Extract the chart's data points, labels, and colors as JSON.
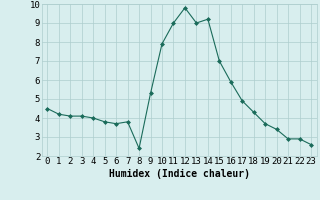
{
  "x": [
    0,
    1,
    2,
    3,
    4,
    5,
    6,
    7,
    8,
    9,
    10,
    11,
    12,
    13,
    14,
    15,
    16,
    17,
    18,
    19,
    20,
    21,
    22,
    23
  ],
  "y": [
    4.5,
    4.2,
    4.1,
    4.1,
    4.0,
    3.8,
    3.7,
    3.8,
    2.4,
    5.3,
    7.9,
    9.0,
    9.8,
    9.0,
    9.2,
    7.0,
    5.9,
    4.9,
    4.3,
    3.7,
    3.4,
    2.9,
    2.9,
    2.6
  ],
  "line_color": "#1a6b5a",
  "marker": "D",
  "marker_size": 2.0,
  "bg_color": "#d8eeee",
  "grid_color": "#aecece",
  "xlabel": "Humidex (Indice chaleur)",
  "xlim": [
    -0.5,
    23.5
  ],
  "ylim": [
    2,
    10
  ],
  "xtick_labels": [
    "0",
    "1",
    "2",
    "3",
    "4",
    "5",
    "6",
    "7",
    "8",
    "9",
    "10",
    "11",
    "12",
    "13",
    "14",
    "15",
    "16",
    "17",
    "18",
    "19",
    "20",
    "21",
    "22",
    "23"
  ],
  "ytick_labels": [
    "2",
    "3",
    "4",
    "5",
    "6",
    "7",
    "8",
    "9",
    "10"
  ],
  "yticks": [
    2,
    3,
    4,
    5,
    6,
    7,
    8,
    9,
    10
  ],
  "xlabel_fontsize": 7,
  "tick_fontsize": 6.5
}
